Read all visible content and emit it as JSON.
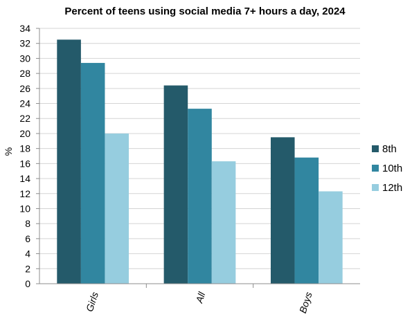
{
  "chart_data": {
    "type": "bar",
    "title": "Percent of teens using social media 7+ hours a day, 2024",
    "xlabel": "",
    "ylabel": "%",
    "ylim": [
      0,
      34
    ],
    "ytick_step": 2,
    "grid": "horizontal",
    "legend_position": "right",
    "categories": [
      "Girls",
      "All",
      "Boys"
    ],
    "series": [
      {
        "name": "8th",
        "color": "#245a6a",
        "values": [
          32.5,
          26.4,
          19.5
        ]
      },
      {
        "name": "10th",
        "color": "#3186a0",
        "values": [
          29.4,
          23.3,
          16.8
        ]
      },
      {
        "name": "12th",
        "color": "#96cddf",
        "values": [
          20.0,
          16.3,
          12.3
        ]
      }
    ]
  }
}
